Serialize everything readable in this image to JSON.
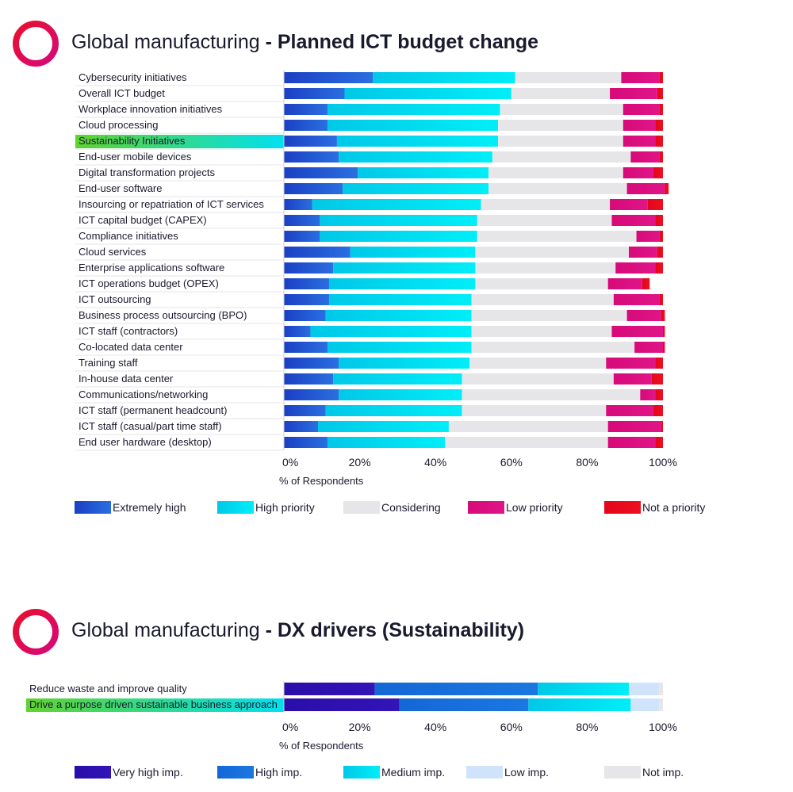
{
  "chart_data": [
    {
      "type": "bar",
      "orientation": "horizontal",
      "stacked": true,
      "title_prefix": "Global manufacturing",
      "title_separator": " - ",
      "title_main": "Planned ICT budget change",
      "xlabel": "% of Respondents",
      "xlim": [
        0,
        100
      ],
      "xticks": [
        "0%",
        "20%",
        "40%",
        "60%",
        "80%",
        "100%"
      ],
      "highlight_category": "Sustainability Initiatives",
      "highlight_colors": [
        "#5fd42e",
        "#00e0f0"
      ],
      "categories": [
        "Cybersecurity initiatives",
        "Overall ICT budget",
        "Workplace innovation initiatives",
        "Cloud processing",
        "Sustainability Initiatives",
        "End-user mobile devices",
        "Digital transformation projects",
        "End-user software",
        "Insourcing or repatriation of ICT services",
        "ICT capital budget (CAPEX)",
        "Compliance initiatives",
        "Cloud services",
        "Enterprise applications software",
        "ICT operations budget (OPEX)",
        "ICT outsourcing",
        "Business process outsourcing (BPO)",
        "ICT staff (contractors)",
        "Co-located data center",
        "Training staff",
        "In-house data center",
        "Communications/networking",
        "ICT staff (permanent headcount)",
        "ICT staff (casual/part time staff)",
        "End user hardware (desktop)"
      ],
      "series": [
        {
          "name": "Extremely high",
          "color": "#1b3fc4",
          "color2": "#2a6fe0",
          "values": [
            23.5,
            16,
            11.5,
            11.5,
            14,
            14.5,
            19.5,
            15.5,
            7.5,
            9.5,
            9.5,
            17.5,
            13,
            12,
            12,
            11,
            7,
            11.5,
            14.5,
            13,
            14.5,
            11,
            9,
            11.5
          ]
        },
        {
          "name": "High priority",
          "color": "#00c8e8",
          "color2": "#00eef8",
          "values": [
            37.5,
            44,
            45.5,
            45,
            42.5,
            40.5,
            34.5,
            38.5,
            44.5,
            41.5,
            41.5,
            33,
            37.5,
            38.5,
            37.5,
            38.5,
            42.5,
            38,
            34.5,
            34,
            32.5,
            36,
            34.5,
            31
          ]
        },
        {
          "name": "Considering",
          "color": "#e6e6e9",
          "color2": "#e6e6e9",
          "values": [
            28,
            26,
            32.5,
            33,
            33,
            36.5,
            35.5,
            36.5,
            34,
            35.5,
            42,
            40.5,
            37,
            35,
            37.5,
            41,
            37,
            43,
            36,
            40,
            47,
            38,
            42,
            43
          ]
        },
        {
          "name": "Low priority",
          "color": "#d60a78",
          "color2": "#e01588",
          "values": [
            10,
            12.5,
            9.5,
            8.5,
            8.5,
            7.5,
            8,
            10,
            10,
            11.5,
            6,
            7.5,
            10.5,
            9,
            12,
            9,
            13.5,
            7.5,
            13,
            10,
            4,
            12.5,
            14,
            12.5
          ]
        },
        {
          "name": "Not a priority",
          "color": "#e3061c",
          "color2": "#ee1020",
          "values": [
            1,
            1.5,
            1,
            2,
            2,
            1,
            2.5,
            1,
            4,
            2,
            1,
            1.5,
            2,
            2,
            1,
            1,
            0.5,
            0.5,
            2,
            3,
            2,
            2.5,
            0.5,
            2
          ]
        }
      ],
      "legend_position": "bottom"
    },
    {
      "type": "bar",
      "orientation": "horizontal",
      "stacked": true,
      "title_prefix": "Global manufacturing",
      "title_separator": " - ",
      "title_main": "DX drivers (Sustainability)",
      "xlabel": "% of Respondents",
      "xlim": [
        0,
        100
      ],
      "xticks": [
        "0%",
        "20%",
        "40%",
        "60%",
        "80%",
        "100%"
      ],
      "highlight_category": "Drive a purpose driven sustainable business approach",
      "highlight_colors": [
        "#5fd42e",
        "#00e0f0"
      ],
      "categories": [
        "Reduce waste and improve quality",
        "Drive a purpose driven sustainable business approach"
      ],
      "series": [
        {
          "name": "Very high imp.",
          "color": "#2a0ea8",
          "color2": "#3214b8",
          "values": [
            24,
            30.5
          ]
        },
        {
          "name": "High imp.",
          "color": "#1467d6",
          "color2": "#1a78e0",
          "values": [
            43,
            34
          ]
        },
        {
          "name": "Medium imp.",
          "color": "#00c8e8",
          "color2": "#00eef8",
          "values": [
            24,
            27
          ]
        },
        {
          "name": "Low imp.",
          "color": "#cfe3fb",
          "color2": "#cfe3fb",
          "values": [
            8,
            7.5
          ]
        },
        {
          "name": "Not imp.",
          "color": "#e6e6e9",
          "color2": "#e6e6e9",
          "values": [
            1,
            1
          ]
        }
      ],
      "legend_position": "bottom"
    }
  ]
}
